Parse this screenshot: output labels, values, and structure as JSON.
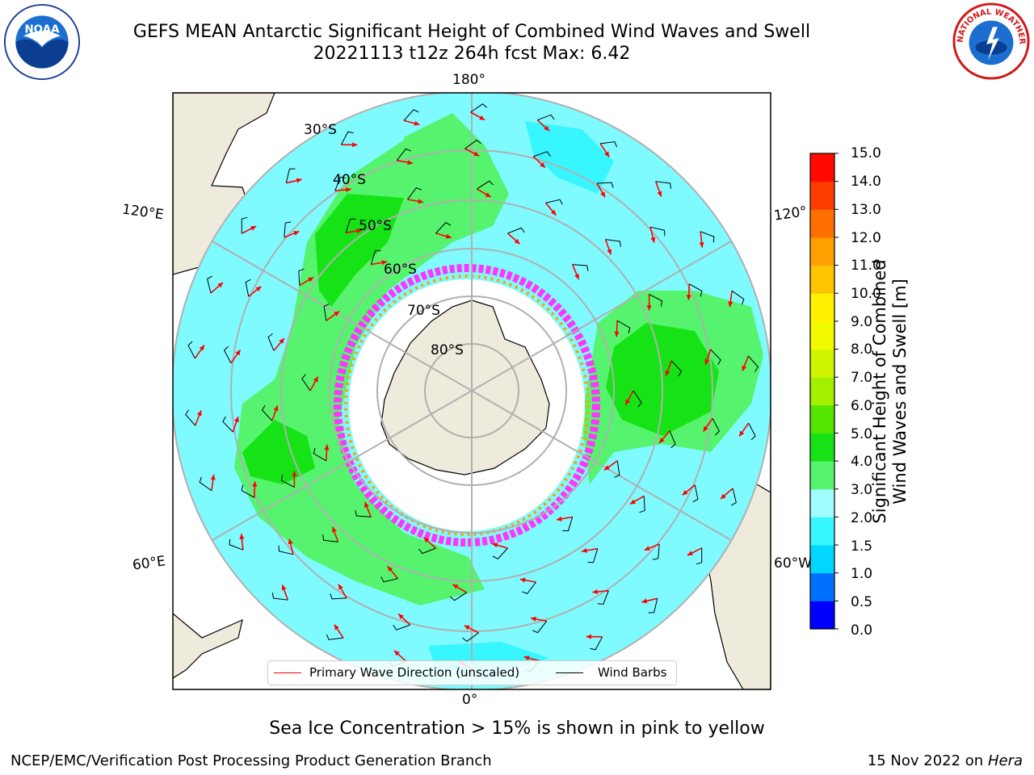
{
  "title": {
    "line1": "GEFS MEAN Antarctic Significant Height of Combined Wind Waves and Swell",
    "line2": "20221113 t12z 264h fcst   Max: 6.42"
  },
  "map": {
    "longitude_labels": [
      "180°",
      "120°E",
      "120°",
      "60°E",
      "60°W",
      "0°"
    ],
    "latitude_labels": [
      "30°S",
      "40°S",
      "50°S",
      "60°S",
      "70°S",
      "80°S"
    ],
    "colors": {
      "land": "#efebdc",
      "ocean_low": "#7ffaff",
      "ocean_mid": "#38f6ff",
      "green_light": "#56f46e",
      "green": "#16e316",
      "ice": "#ff34ff",
      "arrow": "#ff0000",
      "barb": "#000000"
    }
  },
  "colorbar": {
    "label_line1": "Significant Height of Combined",
    "label_line2": "Wind Waves and Swell [m]",
    "ticks": [
      "15.0",
      "14.0",
      "13.0",
      "12.0",
      "11.0",
      "10.0",
      "9.0",
      "8.0",
      "7.0",
      "6.0",
      "5.0",
      "4.0",
      "3.0",
      "2.0",
      "1.5",
      "1.0",
      "0.5",
      "0.0"
    ],
    "colors_bottom_to_top": [
      "#0000ff",
      "#0070ff",
      "#00d6ff",
      "#38f6ff",
      "#9ffcff",
      "#56f46e",
      "#16e316",
      "#53e400",
      "#a2ef00",
      "#cef400",
      "#f2fa00",
      "#fff000",
      "#ffc400",
      "#ffa000",
      "#ff7000",
      "#ff3c00",
      "#ff0a00"
    ]
  },
  "legend": {
    "wave_label": "Primary Wave Direction (unscaled)",
    "barb_label": "Wind Barbs"
  },
  "footnote": "Sea Ice Concentration > 15% is shown in pink to yellow",
  "footer": {
    "credit": "NCEP/EMC/Verification Post Processing Product Generation Branch",
    "date": "15 Nov 2022 on",
    "machine": "Hera"
  },
  "logos": {
    "left": "NOAA",
    "right": "NATIONAL WEATHER SERVICE"
  }
}
